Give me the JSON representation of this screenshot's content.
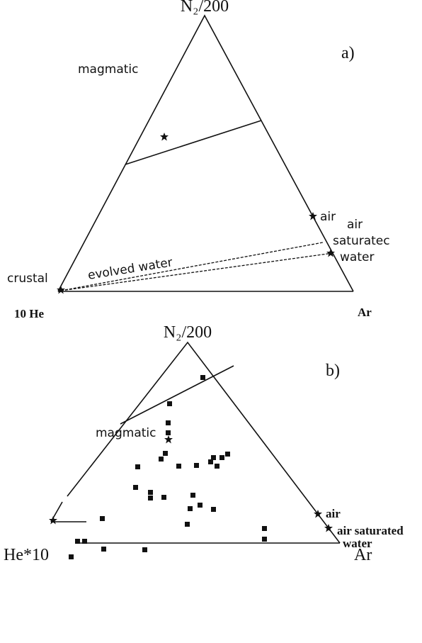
{
  "panel_a": {
    "label": "a)",
    "apex": "N₂/200",
    "left": "10 He",
    "right": "Ar",
    "regions": [
      "magmatic",
      "crustal"
    ],
    "evolved": "evolved water",
    "air": "air",
    "asw": [
      "air",
      "saturatec",
      "water"
    ]
  },
  "panel_b": {
    "label": "b)",
    "apex": "N₂/200",
    "left": "He*10",
    "right": "Ar",
    "magmatic": "magmatic",
    "air": "air",
    "asw": [
      "air saturated",
      "water"
    ]
  }
}
